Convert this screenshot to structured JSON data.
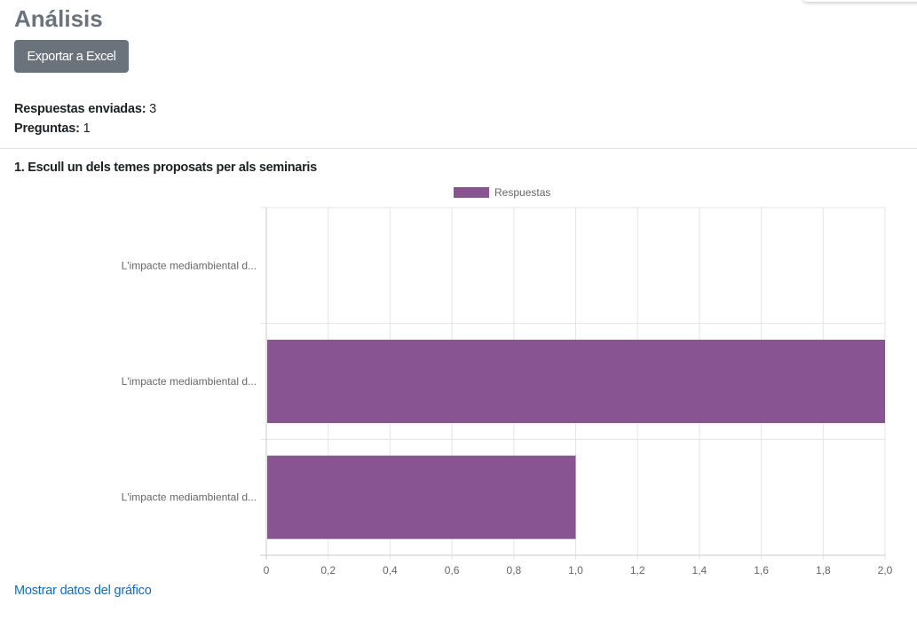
{
  "page": {
    "title": "Análisis"
  },
  "toolbar": {
    "export_label": "Exportar a Excel"
  },
  "stats": {
    "responses_label": "Respuestas enviadas:",
    "responses_value": "3",
    "questions_label": "Preguntas:",
    "questions_value": "1"
  },
  "question": {
    "title": "1. Escull un dels temes proposats per als seminaris"
  },
  "links": {
    "show_data": "Mostrar datos del gráfico"
  },
  "colors": {
    "bar": "#885592",
    "button": "#6a737b",
    "link": "#0f6cbf",
    "heading": "#6a737b"
  },
  "chart_data": {
    "type": "bar",
    "orientation": "horizontal",
    "categories": [
      "L'impacte mediambiental d...",
      "L'impacte mediambiental d...",
      "L'impacte mediambiental d..."
    ],
    "series": [
      {
        "name": "Respuestas",
        "values": [
          0,
          2,
          1
        ]
      }
    ],
    "xlim": [
      0,
      2
    ],
    "ticks": [
      "0",
      "0,2",
      "0,4",
      "0,6",
      "0,8",
      "1,0",
      "1,2",
      "1,4",
      "1,6",
      "1,8",
      "2,0"
    ],
    "grid": true,
    "legend": "top"
  }
}
